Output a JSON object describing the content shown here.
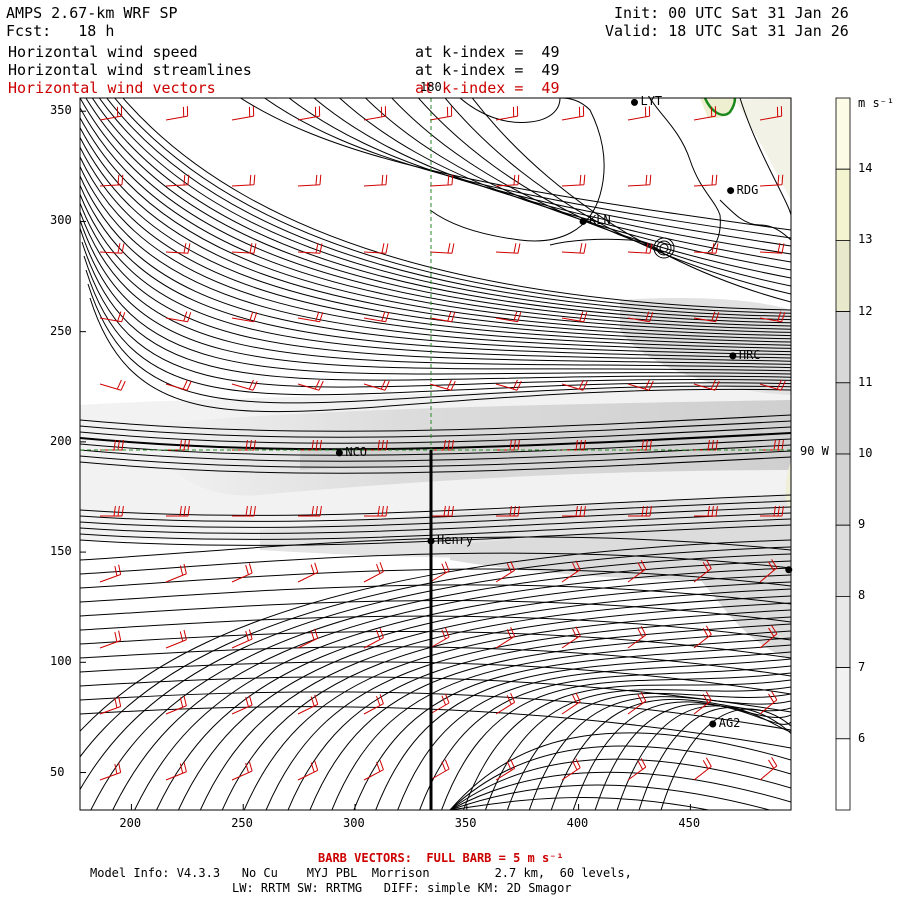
{
  "header": {
    "model": "AMPS 2.67-km WRF SP",
    "forecast": "Fcst:   18 h",
    "init": "Init: 00 UTC Sat 31 Jan 26",
    "valid": "Valid: 18 UTC Sat 31 Jan 26"
  },
  "fields": [
    {
      "name": "Horizontal wind speed",
      "level": "at k-index =  49",
      "color": "#000000"
    },
    {
      "name": "Horizontal wind streamlines",
      "level": "at k-index =  49",
      "color": "#000000"
    },
    {
      "name": "Horizontal wind vectors",
      "level": "at k-index =  49",
      "color": "#cc0000"
    }
  ],
  "axes": {
    "x_ticks": [
      "200",
      "250",
      "300",
      "350",
      "400",
      "450"
    ],
    "y_ticks": [
      "350",
      "300",
      "250",
      "200",
      "150",
      "100",
      "50"
    ],
    "x_range": [
      177,
      495
    ],
    "y_range": [
      33,
      356
    ]
  },
  "grid_labels": {
    "lon_top": "180",
    "lon_right": "90 W"
  },
  "stations": [
    {
      "name": "LYT",
      "x": 425,
      "y": 354
    },
    {
      "name": "RDG",
      "x": 468,
      "y": 314
    },
    {
      "name": "KLN",
      "x": 402,
      "y": 300
    },
    {
      "name": "HRC",
      "x": 469,
      "y": 239
    },
    {
      "name": "NCO",
      "x": 293,
      "y": 195
    },
    {
      "name": "Henry",
      "x": 334,
      "y": 155
    },
    {
      "name": "",
      "x": 494,
      "y": 142
    },
    {
      "name": "AG2",
      "x": 460,
      "y": 72
    }
  ],
  "colorbar": {
    "units": "m s⁻¹",
    "levels": [
      "14",
      "13",
      "12",
      "11",
      "10",
      "9",
      "8",
      "7",
      "6"
    ]
  },
  "footer": {
    "barb_note": "BARB VECTORS:  FULL BARB = 5 m s⁻¹",
    "model_info": "Model Info: V4.3.3   No Cu    MYJ PBL  Morrison         2.7 km,  60 levels,",
    "physics": "LW: RRTM SW: RRTMG   DIFF: simple KM: 2D Smagor"
  }
}
